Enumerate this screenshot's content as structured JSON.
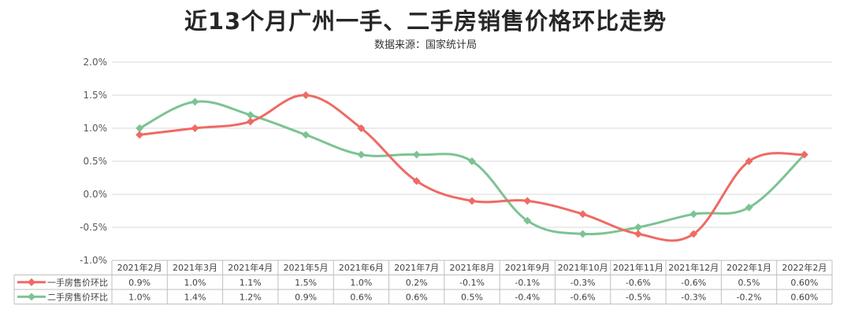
{
  "title": "近13个月广州一手、二手房销售价格环比走势",
  "subtitle": "数据来源：国家统计局",
  "colors": {
    "series1": "#ef6a63",
    "series2": "#7cc393",
    "grid": "#d9d9d9",
    "table_border": "#bfbfbf"
  },
  "chart_data": {
    "type": "line",
    "title": "近13个月广州一手、二手房销售价格环比走势",
    "subtitle": "数据来源：国家统计局",
    "categories": [
      "2021年2月",
      "2021年3月",
      "2021年4月",
      "2021年5月",
      "2021年6月",
      "2021年7月",
      "2021年8月",
      "2021年9月",
      "2021年10月",
      "2021年11月",
      "2021年12月",
      "2022年1月",
      "2022年2月"
    ],
    "ylim": [
      -1.0,
      2.0
    ],
    "yticks": [
      "2.0%",
      "1.5%",
      "1.0%",
      "0.5%",
      "0.0%",
      "-0.5%",
      "-1.0%"
    ],
    "yticks_values": [
      2.0,
      1.5,
      1.0,
      0.5,
      0.0,
      -0.5,
      -1.0
    ],
    "grid": true,
    "legend": "bottom-table",
    "series": [
      {
        "name": "一手房售价环比",
        "color": "#ef6a63",
        "values": [
          0.9,
          1.0,
          1.1,
          1.5,
          1.0,
          0.2,
          -0.1,
          -0.1,
          -0.3,
          -0.6,
          -0.6,
          0.5,
          0.6
        ],
        "labels": [
          "0.9%",
          "1.0%",
          "1.1%",
          "1.5%",
          "1.0%",
          "0.2%",
          "-0.1%",
          "-0.1%",
          "-0.3%",
          "-0.6%",
          "-0.6%",
          "0.5%",
          "0.60%"
        ]
      },
      {
        "name": "二手房售价环比",
        "color": "#7cc393",
        "values": [
          1.0,
          1.4,
          1.2,
          0.9,
          0.6,
          0.6,
          0.5,
          -0.4,
          -0.6,
          -0.5,
          -0.3,
          -0.2,
          0.6
        ],
        "labels": [
          "1.0%",
          "1.4%",
          "1.2%",
          "0.9%",
          "0.6%",
          "0.6%",
          "0.5%",
          "-0.4%",
          "-0.6%",
          "-0.5%",
          "-0.3%",
          "-0.2%",
          "0.60%"
        ]
      }
    ]
  }
}
